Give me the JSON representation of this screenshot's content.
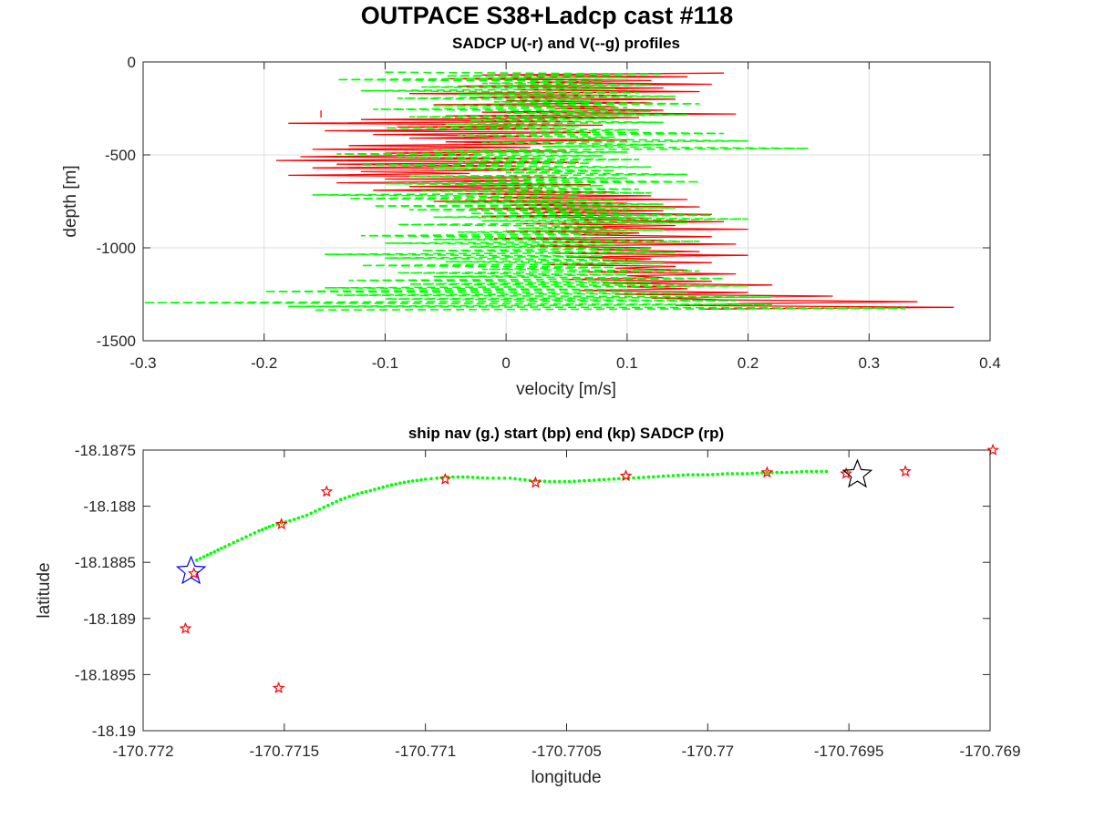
{
  "figure": {
    "title": "OUTPACE S38+Ladcp cast #118"
  },
  "chart_data": [
    {
      "type": "line",
      "title": "SADCP U(-r) and V(--g) profiles",
      "xlabel": "velocity [m/s]",
      "ylabel": "depth [m]",
      "xlim": [
        -0.3,
        0.4
      ],
      "ylim": [
        -1500,
        0
      ],
      "xticks": [
        "-0.3",
        "-0.2",
        "-0.1",
        "0",
        "0.1",
        "0.2",
        "0.3",
        "0.4"
      ],
      "yticks": [
        "0",
        "-500",
        "-1000",
        "-1500"
      ],
      "grid": true,
      "series": [
        {
          "name": "U",
          "color": "#ff0000",
          "style": "solid",
          "depth": [
            -60,
            -70,
            -80,
            -90,
            -100,
            -110,
            -120,
            -130,
            -140,
            -150,
            -160,
            -170,
            -180,
            -190,
            -200,
            -210,
            -220,
            -230,
            -240,
            -250,
            -260,
            -270,
            -280,
            -290,
            -300,
            -310,
            -320,
            -330,
            -340,
            -350,
            -360,
            -370,
            -380,
            -390,
            -400,
            -410,
            -420,
            -430,
            -440,
            -450,
            -460,
            -470,
            -480,
            -490,
            -500,
            -510,
            -520,
            -530,
            -540,
            -550,
            -560,
            -570,
            -580,
            -590,
            -600,
            -610,
            -620,
            -630,
            -640,
            -650,
            -660,
            -670,
            -680,
            -690,
            -700,
            -710,
            -720,
            -730,
            -740,
            -750,
            -760,
            -770,
            -780,
            -790,
            -800,
            -810,
            -820,
            -830,
            -840,
            -850,
            -860,
            -870,
            -880,
            -890,
            -900,
            -910,
            -920,
            -930,
            -940,
            -950,
            -960,
            -970,
            -980,
            -990,
            -1000,
            -1010,
            -1020,
            -1030,
            -1040,
            -1050,
            -1060,
            -1070,
            -1080,
            -1090,
            -1100,
            -1110,
            -1120,
            -1130,
            -1140,
            -1150,
            -1160,
            -1170,
            -1180,
            -1190,
            -1200,
            -1210,
            -1220,
            -1230,
            -1240,
            -1250,
            -1260,
            -1270,
            -1280,
            -1290,
            -1300,
            -1310,
            -1320,
            -1330
          ],
          "values": [
            0.18,
            -0.02,
            0.15,
            -0.05,
            0.12,
            0.02,
            0.17,
            -0.04,
            0.13,
            0.01,
            0.16,
            -0.08,
            0.1,
            -0.03,
            0.14,
            0.0,
            0.12,
            -0.06,
            0.09,
            0.04,
            0.13,
            -0.02,
            0.19,
            -0.05,
            0.11,
            -0.12,
            0.06,
            -0.18,
            0.08,
            -0.09,
            0.05,
            -0.15,
            0.07,
            -0.11,
            0.03,
            -0.08,
            0.1,
            -0.05,
            0.04,
            -0.13,
            0.02,
            -0.16,
            0.05,
            -0.1,
            -0.02,
            -0.17,
            0.03,
            -0.19,
            0.06,
            -0.14,
            0.01,
            -0.16,
            0.04,
            -0.12,
            -0.03,
            -0.18,
            0.05,
            -0.1,
            0.02,
            -0.14,
            0.07,
            -0.08,
            0.03,
            -0.11,
            0.09,
            -0.04,
            0.12,
            -0.02,
            0.15,
            -0.06,
            0.1,
            0.0,
            0.16,
            -0.03,
            0.13,
            0.02,
            0.17,
            -0.02,
            0.12,
            0.05,
            0.18,
            0.01,
            0.14,
            0.04,
            0.2,
            0.0,
            0.11,
            0.06,
            0.17,
            -0.01,
            0.13,
            0.03,
            0.19,
            0.02,
            0.12,
            0.07,
            0.16,
            0.04,
            0.2,
            0.05,
            0.12,
            0.08,
            0.17,
            0.03,
            0.14,
            0.09,
            0.15,
            0.06,
            0.19,
            0.1,
            0.13,
            0.05,
            0.17,
            0.08,
            0.22,
            0.1,
            0.15,
            0.06,
            0.2,
            0.09,
            0.27,
            0.12,
            0.18,
            0.34,
            0.2,
            0.14,
            0.37,
            0.16,
            0.28,
            0.2
          ],
          "detached_point": {
            "u": -0.153,
            "depth": -280
          }
        },
        {
          "name": "V",
          "color": "#00ff00",
          "style": "dashed",
          "depth": [
            -55,
            -65,
            -75,
            -85,
            -95,
            -105,
            -115,
            -125,
            -135,
            -145,
            -155,
            -165,
            -175,
            -185,
            -195,
            -205,
            -215,
            -225,
            -235,
            -245,
            -255,
            -265,
            -275,
            -285,
            -295,
            -305,
            -315,
            -325,
            -335,
            -345,
            -355,
            -365,
            -375,
            -385,
            -395,
            -405,
            -415,
            -425,
            -435,
            -445,
            -455,
            -465,
            -475,
            -485,
            -495,
            -505,
            -515,
            -525,
            -535,
            -545,
            -555,
            -565,
            -575,
            -585,
            -595,
            -605,
            -615,
            -625,
            -635,
            -645,
            -655,
            -665,
            -675,
            -685,
            -695,
            -705,
            -715,
            -725,
            -735,
            -745,
            -755,
            -765,
            -775,
            -785,
            -795,
            -805,
            -815,
            -825,
            -835,
            -845,
            -855,
            -865,
            -875,
            -885,
            -895,
            -905,
            -915,
            -925,
            -935,
            -945,
            -955,
            -965,
            -975,
            -985,
            -995,
            -1005,
            -1015,
            -1025,
            -1035,
            -1045,
            -1055,
            -1065,
            -1075,
            -1085,
            -1095,
            -1105,
            -1115,
            -1125,
            -1135,
            -1145,
            -1155,
            -1165,
            -1175,
            -1185,
            -1195,
            -1205,
            -1215,
            -1225,
            -1235,
            -1245,
            -1255,
            -1265,
            -1275,
            -1285,
            -1295,
            -1305,
            -1315,
            -1325,
            -1335
          ],
          "values": [
            -0.1,
            0.13,
            -0.05,
            0.1,
            -0.14,
            0.08,
            -0.02,
            0.12,
            -0.07,
            0.09,
            -0.12,
            0.11,
            -0.04,
            0.14,
            -0.09,
            0.07,
            -0.01,
            0.16,
            -0.06,
            0.1,
            -0.11,
            0.12,
            0.0,
            0.15,
            -0.08,
            0.09,
            -0.03,
            0.13,
            -0.05,
            0.06,
            -0.1,
            0.11,
            0.02,
            0.18,
            -0.04,
            0.09,
            0.05,
            0.2,
            -0.02,
            0.13,
            0.03,
            0.25,
            -0.06,
            0.1,
            -0.14,
            0.08,
            -0.09,
            0.11,
            -0.04,
            0.07,
            -0.12,
            0.12,
            -0.06,
            0.09,
            0.0,
            0.15,
            -0.08,
            0.1,
            -0.03,
            0.16,
            -0.1,
            0.08,
            -0.02,
            0.11,
            -0.07,
            0.12,
            -0.16,
            0.06,
            -0.13,
            0.09,
            -0.05,
            0.13,
            -0.11,
            0.14,
            -0.08,
            0.1,
            -0.03,
            0.17,
            -0.06,
            0.2,
            -0.02,
            0.15,
            -0.09,
            0.08,
            0.01,
            0.13,
            -0.04,
            0.1,
            -0.12,
            0.07,
            -0.06,
            0.16,
            -0.1,
            0.09,
            -0.03,
            0.12,
            -0.07,
            0.14,
            -0.15,
            0.08,
            -0.1,
            0.11,
            -0.05,
            0.13,
            -0.12,
            0.09,
            -0.02,
            0.16,
            -0.09,
            0.1,
            -0.06,
            0.18,
            -0.13,
            0.12,
            -0.08,
            0.2,
            -0.15,
            0.1,
            -0.2,
            0.15,
            -0.14,
            0.22,
            -0.1,
            0.19,
            -0.3,
            0.22,
            -0.18,
            0.33,
            -0.16,
            0.2
          ]
        }
      ]
    },
    {
      "type": "scatter",
      "title": "ship nav (g.) start (bp) end (kp) SADCP (rp)",
      "xlabel": "longitude",
      "ylabel": "latitude",
      "xlim": [
        -170.772,
        -170.769
      ],
      "ylim": [
        -18.19,
        -18.1875
      ],
      "xticks": [
        "-170.772",
        "-170.7715",
        "-170.771",
        "-170.7705",
        "-170.77",
        "-170.7695",
        "-170.769"
      ],
      "yticks": [
        "-18.1875",
        "-18.188",
        "-18.1885",
        "-18.189",
        "-18.1895",
        "-18.19"
      ],
      "grid": false,
      "ship_nav": {
        "color": "#00ff00",
        "lon": [
          -170.77181,
          -170.77176,
          -170.77171,
          -170.77165,
          -170.77159,
          -170.77154,
          -170.77148,
          -170.77142,
          -170.77136,
          -170.7713,
          -170.77124,
          -170.77118,
          -170.77112,
          -170.77106,
          -170.771,
          -170.77092,
          -170.77085,
          -170.77078,
          -170.7707,
          -170.77063,
          -170.77056,
          -170.77049,
          -170.77042,
          -170.77035,
          -170.77028,
          -170.77021,
          -170.77014,
          -170.77007,
          -170.77,
          -170.76993,
          -170.76986,
          -170.76979,
          -170.76972,
          -170.76965,
          -170.76958
        ],
        "lat": [
          -18.18848,
          -18.18842,
          -18.18836,
          -18.18829,
          -18.18822,
          -18.18817,
          -18.18813,
          -18.18808,
          -18.18801,
          -18.18794,
          -18.18789,
          -18.18785,
          -18.18781,
          -18.18778,
          -18.18776,
          -18.18774,
          -18.18774,
          -18.18775,
          -18.18775,
          -18.18777,
          -18.18778,
          -18.18778,
          -18.18777,
          -18.18776,
          -18.18775,
          -18.18774,
          -18.18773,
          -18.18772,
          -18.18772,
          -18.18771,
          -18.18771,
          -18.1877,
          -18.1877,
          -18.18769,
          -18.18769
        ]
      },
      "start": {
        "lon": -170.77183,
        "lat": -18.18858,
        "color": "#0000ff"
      },
      "end": {
        "lon": -170.76947,
        "lat": -18.18772,
        "color": "#000000"
      },
      "sadcp": {
        "color": "#ff0000",
        "lon": [
          -170.77182,
          -170.77185,
          -170.77151,
          -170.77152,
          -170.77135,
          -170.77093,
          -170.77061,
          -170.77029,
          -170.76979,
          -170.76951,
          -170.7693,
          -170.76899
        ],
        "lat": [
          -18.1886,
          -18.18909,
          -18.18816,
          -18.18962,
          -18.18787,
          -18.18776,
          -18.18779,
          -18.18773,
          -18.1877,
          -18.18771,
          -18.18769,
          -18.1875
        ]
      }
    }
  ]
}
